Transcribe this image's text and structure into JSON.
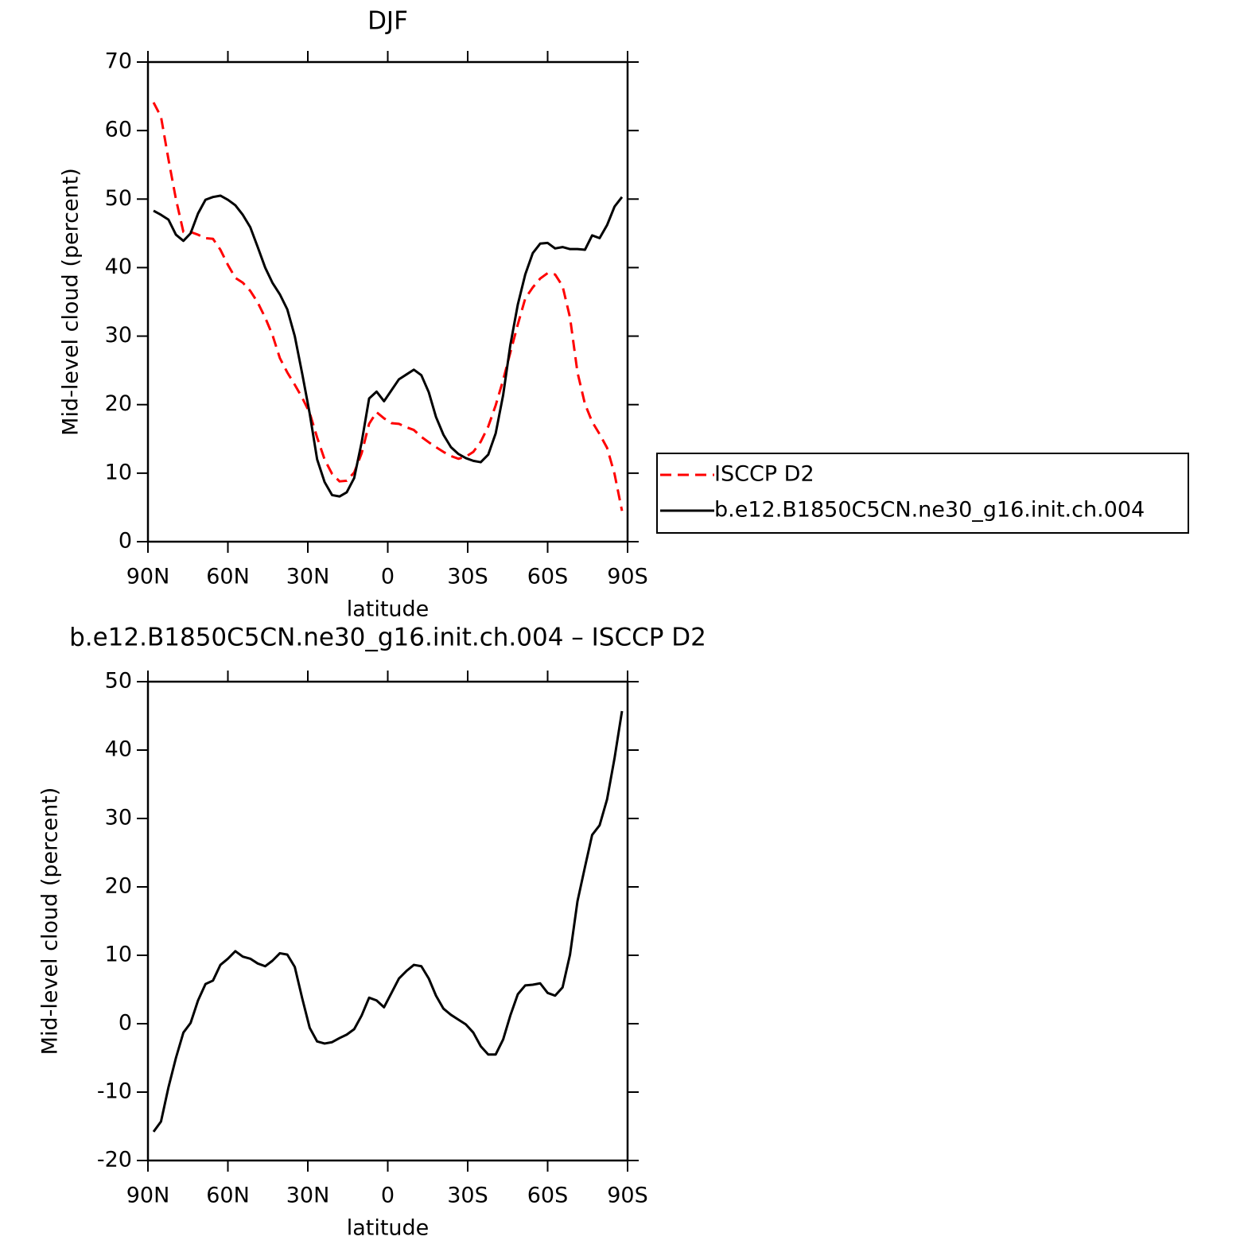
{
  "chart_data": [
    {
      "type": "line",
      "title": "DJF",
      "xlabel": "latitude",
      "ylabel": "Mid-level cloud (percent)",
      "x": [
        87.9,
        85.1,
        82.3,
        79.5,
        76.7,
        74.0,
        71.2,
        68.4,
        65.6,
        62.8,
        60.0,
        57.2,
        54.4,
        51.6,
        48.8,
        46.0,
        43.3,
        40.5,
        37.7,
        34.9,
        32.1,
        29.3,
        26.5,
        23.7,
        20.9,
        18.1,
        15.4,
        12.6,
        9.8,
        7.0,
        4.2,
        1.4,
        -1.4,
        -4.2,
        -7.0,
        -9.8,
        -12.6,
        -15.4,
        -18.1,
        -20.9,
        -23.7,
        -26.5,
        -29.3,
        -32.1,
        -34.9,
        -37.7,
        -40.5,
        -43.3,
        -46.0,
        -48.8,
        -51.6,
        -54.4,
        -57.2,
        -60.0,
        -62.8,
        -65.6,
        -68.4,
        -71.2,
        -74.0,
        -76.7,
        -79.5,
        -82.3,
        -85.1,
        -87.9
      ],
      "series": [
        {
          "name": "ISCCP D2",
          "color": "#ff0000",
          "dashed": true,
          "values": [
            64.1,
            62.0,
            55.8,
            50.0,
            45.2,
            45.2,
            44.8,
            44.3,
            44.2,
            42.6,
            40.4,
            38.5,
            37.8,
            36.6,
            34.9,
            32.7,
            30.2,
            26.8,
            24.7,
            22.9,
            21.0,
            18.8,
            15.2,
            12.0,
            9.9,
            8.8,
            8.9,
            10.1,
            12.9,
            17.2,
            18.9,
            18.0,
            17.3,
            17.2,
            16.7,
            16.3,
            15.3,
            14.5,
            13.8,
            13.1,
            12.5,
            12.1,
            12.4,
            13.1,
            14.6,
            16.8,
            19.9,
            23.6,
            27.6,
            31.7,
            35.5,
            37.1,
            38.4,
            39.2,
            39.0,
            37.3,
            32.7,
            24.7,
            20.1,
            17.5,
            15.7,
            13.7,
            9.9,
            4.5
          ]
        },
        {
          "name": "b.e12.B1850C5CN.ne30_g16.init.ch.004",
          "color": "#000000",
          "dashed": false,
          "values": [
            48.3,
            47.7,
            47.0,
            44.8,
            43.9,
            45.0,
            47.9,
            49.9,
            50.3,
            50.5,
            49.9,
            49.1,
            47.7,
            45.9,
            43.0,
            40.0,
            37.8,
            36.1,
            33.9,
            30.0,
            24.5,
            18.7,
            12.0,
            8.7,
            6.8,
            6.6,
            7.2,
            9.3,
            14.5,
            20.9,
            21.9,
            20.5,
            22.1,
            23.7,
            24.4,
            25.1,
            24.3,
            21.8,
            18.2,
            15.6,
            13.8,
            12.8,
            12.2,
            11.8,
            11.6,
            12.7,
            15.8,
            21.4,
            28.7,
            34.6,
            39.0,
            42.1,
            43.5,
            43.6,
            42.8,
            43.0,
            42.7,
            42.7,
            42.6,
            44.7,
            44.3,
            46.2,
            48.9,
            50.3
          ]
        }
      ],
      "xlim": [
        90,
        -90
      ],
      "xticks": [
        {
          "value": 90,
          "label": "90N"
        },
        {
          "value": 60,
          "label": "60N"
        },
        {
          "value": 30,
          "label": "30N"
        },
        0,
        {
          "value": -30,
          "label": "30S"
        },
        {
          "value": -60,
          "label": "60S"
        },
        {
          "value": -90,
          "label": "90S"
        }
      ],
      "ylim": [
        0,
        70
      ],
      "yticks": [
        0,
        10,
        20,
        30,
        40,
        50,
        60,
        70
      ],
      "legend": "right"
    },
    {
      "type": "line",
      "title": "b.e12.B1850C5CN.ne30_g16.init.ch.004 – ISCCP D2",
      "xlabel": "latitude",
      "ylabel": "Mid-level cloud (percent)",
      "x": [
        87.9,
        85.1,
        82.3,
        79.5,
        76.7,
        74.0,
        71.2,
        68.4,
        65.6,
        62.8,
        60.0,
        57.2,
        54.4,
        51.6,
        48.8,
        46.0,
        43.3,
        40.5,
        37.7,
        34.9,
        32.1,
        29.3,
        26.5,
        23.7,
        20.9,
        18.1,
        15.4,
        12.6,
        9.8,
        7.0,
        4.2,
        1.4,
        -1.4,
        -4.2,
        -7.0,
        -9.8,
        -12.6,
        -15.4,
        -18.1,
        -20.9,
        -23.7,
        -26.5,
        -29.3,
        -32.1,
        -34.9,
        -37.7,
        -40.5,
        -43.3,
        -46.0,
        -48.8,
        -51.6,
        -54.4,
        -57.2,
        -60.0,
        -62.8,
        -65.6,
        -68.4,
        -71.2,
        -74.0,
        -76.7,
        -79.5,
        -82.3,
        -85.1,
        -87.9
      ],
      "series": [
        {
          "color": "#000000",
          "dashed": false,
          "values": [
            -15.8,
            -14.3,
            -9.3,
            -5.0,
            -1.3,
            0.1,
            3.4,
            5.8,
            6.3,
            8.6,
            9.5,
            10.6,
            9.8,
            9.5,
            8.8,
            8.4,
            9.2,
            10.3,
            10.1,
            8.3,
            3.7,
            -0.6,
            -2.6,
            -2.9,
            -2.7,
            -2.1,
            -1.6,
            -0.8,
            1.2,
            3.8,
            3.4,
            2.4,
            4.5,
            6.6,
            7.7,
            8.6,
            8.4,
            6.6,
            4.1,
            2.2,
            1.3,
            0.6,
            -0.1,
            -1.3,
            -3.3,
            -4.5,
            -4.5,
            -2.3,
            1.2,
            4.3,
            5.6,
            5.7,
            5.9,
            4.5,
            4.1,
            5.3,
            10.1,
            17.9,
            22.9,
            27.6,
            29.0,
            32.8,
            38.8,
            45.7
          ]
        }
      ],
      "xlim": [
        90,
        -90
      ],
      "xticks": [
        {
          "value": 90,
          "label": "90N"
        },
        {
          "value": 60,
          "label": "60N"
        },
        {
          "value": 30,
          "label": "30N"
        },
        0,
        {
          "value": -30,
          "label": "30S"
        },
        {
          "value": -60,
          "label": "60S"
        },
        {
          "value": -90,
          "label": "90S"
        }
      ],
      "ylim": [
        -20,
        50
      ],
      "yticks": [
        -20,
        -10,
        0,
        10,
        20,
        30,
        40,
        50
      ]
    }
  ]
}
